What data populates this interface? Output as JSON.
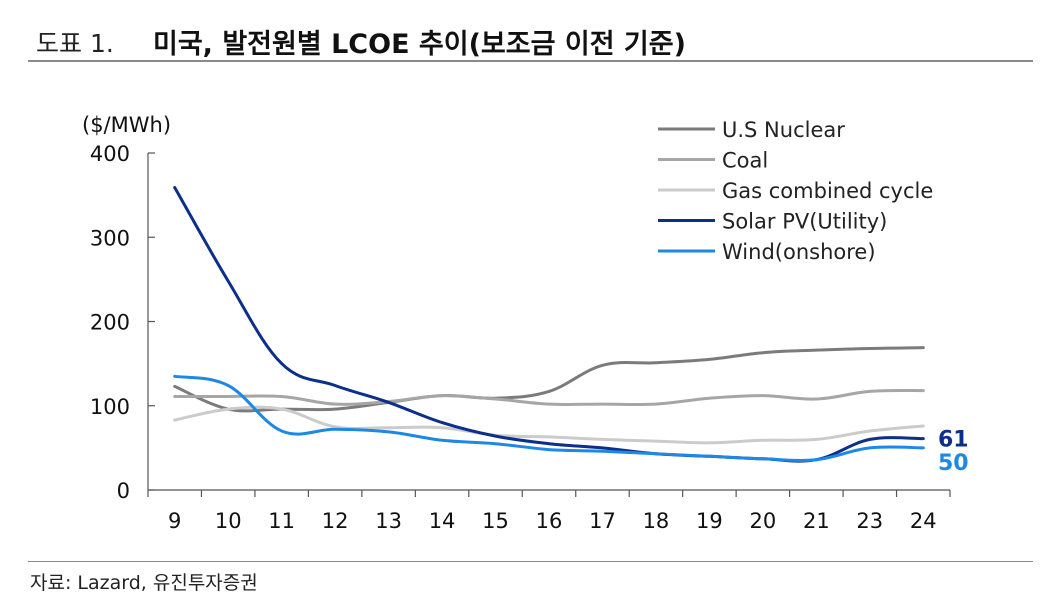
{
  "header": {
    "figure_label": "도표 1.",
    "title": "미국, 발전원별 LCOE 추이(보조금 이전 기준)"
  },
  "footer": {
    "source": "자료: Lazard, 유진투자증권"
  },
  "chart_data": {
    "type": "line",
    "title": "미국, 발전원별 LCOE 추이(보조금 이전 기준)",
    "ylabel": "($/MWh)",
    "xlabel": "",
    "ylim": [
      0,
      400
    ],
    "yticks": [
      0,
      100,
      200,
      300,
      400
    ],
    "categories": [
      "9",
      "10",
      "11",
      "12",
      "13",
      "14",
      "15",
      "16",
      "17",
      "18",
      "19",
      "20",
      "21",
      "23",
      "24"
    ],
    "legend_position": "top-right",
    "series": [
      {
        "name": "U.S Nuclear",
        "color": "#7b7b7b",
        "values": [
          123,
          96,
          96,
          96,
          104,
          112,
          109,
          117,
          148,
          151,
          155,
          163,
          166,
          168,
          169
        ]
      },
      {
        "name": "Coal",
        "color": "#a6a6a6",
        "values": [
          111,
          111,
          111,
          102,
          105,
          112,
          108,
          102,
          102,
          102,
          109,
          112,
          108,
          117,
          118
        ]
      },
      {
        "name": "Gas combined cycle",
        "color": "#cbcbcb",
        "values": [
          83,
          96,
          96,
          75,
          74,
          74,
          65,
          63,
          60,
          58,
          56,
          59,
          60,
          70,
          76
        ]
      },
      {
        "name": "Solar PV(Utility)",
        "color": "#0b2f8a",
        "values": [
          359,
          248,
          150,
          124,
          104,
          80,
          64,
          55,
          50,
          43,
          40,
          37,
          36,
          60,
          61
        ]
      },
      {
        "name": "Wind(onshore)",
        "color": "#1e88e5",
        "values": [
          135,
          124,
          70,
          72,
          69,
          59,
          55,
          48,
          46,
          43,
          40,
          37,
          36,
          50,
          50
        ]
      }
    ],
    "end_labels": [
      {
        "series": "Solar PV(Utility)",
        "text": "61",
        "color": "#0b2f8a"
      },
      {
        "series": "Wind(onshore)",
        "text": "50",
        "color": "#1e88e5"
      }
    ]
  }
}
